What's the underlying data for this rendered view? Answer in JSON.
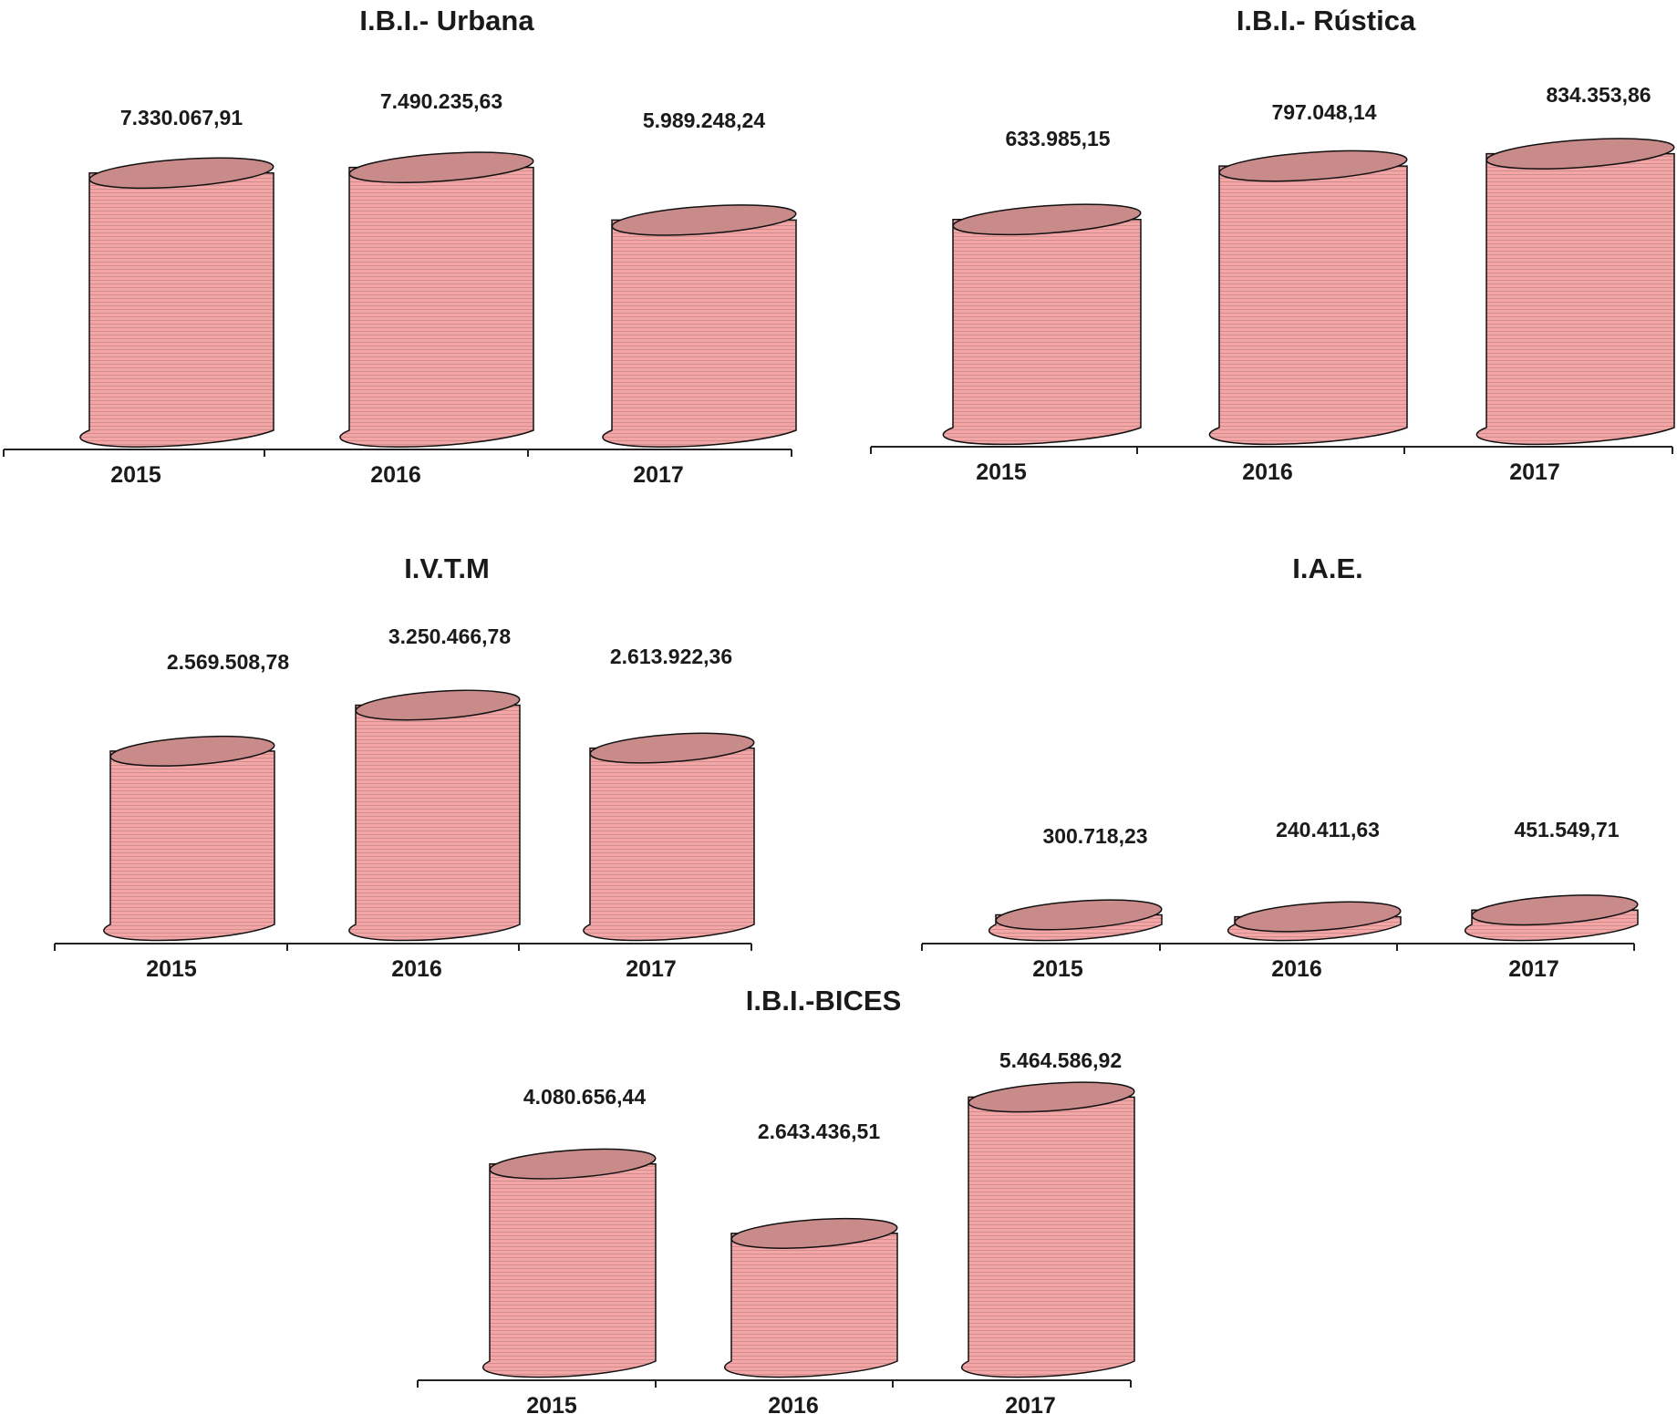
{
  "colors": {
    "body": "#f4a6a6",
    "top": "#c98a8a",
    "stroke": "#111111",
    "axis": "#222222"
  },
  "chart_data": [
    {
      "type": "bar",
      "title": "I.B.I.- Urbana",
      "categories": [
        "2015",
        "2016",
        "2017"
      ],
      "values": [
        7330067.91,
        7490235.63,
        5989248.24
      ],
      "value_labels": [
        "7.330.067,91",
        "7.490.235,63",
        "5.989.248,24"
      ]
    },
    {
      "type": "bar",
      "title": "I.B.I.- Rústica",
      "categories": [
        "2015",
        "2016",
        "2017"
      ],
      "values": [
        633985.15,
        797048.14,
        834353.86
      ],
      "value_labels": [
        "633.985,15",
        "797.048,14",
        "834.353,86"
      ]
    },
    {
      "type": "bar",
      "title": "I.V.T.M",
      "categories": [
        "2015",
        "2016",
        "2017"
      ],
      "values": [
        2569508.78,
        3250466.78,
        2613922.36
      ],
      "value_labels": [
        "2.569.508,78",
        "3.250.466,78",
        "2.613.922,36"
      ]
    },
    {
      "type": "bar",
      "title": "I.A.E.",
      "categories": [
        "2015",
        "2016",
        "2017"
      ],
      "values": [
        300718.23,
        240411.63,
        451549.71
      ],
      "value_labels": [
        "300.718,23",
        "240.411,63",
        "451.549,71"
      ]
    },
    {
      "type": "bar",
      "title": "I.B.I.-BICES",
      "categories": [
        "2015",
        "2016",
        "2017"
      ],
      "values": [
        4080656.44,
        2643436.51,
        5464586.92
      ],
      "value_labels": [
        "4.080.656,44",
        "2.643.436,51",
        "5.464.586,92"
      ]
    }
  ]
}
